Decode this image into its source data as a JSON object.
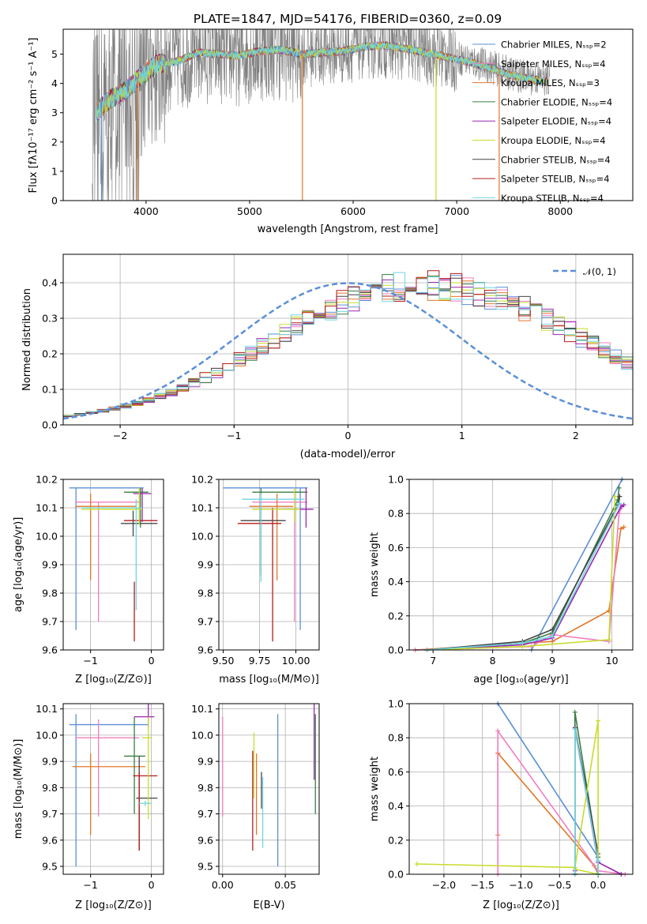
{
  "colors": {
    "spectrum_data": "#7f7f7f",
    "normal_curve": "#5b8fd6",
    "grid": "#b0b0b0"
  },
  "chart_data": [
    {
      "id": "spectrum",
      "type": "line",
      "title": "PLATE=1847, MJD=54176, FIBERID=0360, z=0.09",
      "xlabel": "wavelength [Angstrom, rest frame]",
      "ylabel": "Flux [fλ10⁻¹⁷ erg cm⁻² s⁻¹ A⁻¹]",
      "xlim": [
        3200,
        8700
      ],
      "ylim": [
        0,
        5.85
      ],
      "xticks": [
        "4000",
        "5000",
        "6000",
        "7000",
        "8000"
      ],
      "yticks": [
        "0",
        "1",
        "2",
        "3",
        "4",
        "5"
      ],
      "legend_position": "upper right",
      "series": [
        {
          "name": "Chabrier MILES, Nₛₛₚ=2",
          "color": "#5b8fd6"
        },
        {
          "name": "Salpeter MILES, Nₛₛₚ=4",
          "color": "#ef7fc2"
        },
        {
          "name": "Kroupa MILES, Nₛₛₚ=3",
          "color": "#e0782a"
        },
        {
          "name": "Chabrier ELODIE, Nₛₛₚ=4",
          "color": "#3a7d44"
        },
        {
          "name": "Salpeter ELODIE, Nₛₛₚ=4",
          "color": "#9c27b0"
        },
        {
          "name": "Kroupa ELODIE, Nₛₛₚ=4",
          "color": "#c8dc2a"
        },
        {
          "name": "Chabrier STELIB, Nₛₛₚ=4",
          "color": "#444444"
        },
        {
          "name": "Salpeter STELIB, Nₛₛₚ=4",
          "color": "#b71c1c"
        },
        {
          "name": "Kroupa STELIB, Nₛₛₚ=4",
          "color": "#6fd6e0"
        }
      ],
      "continuum": {
        "x": [
          3500,
          3650,
          3800,
          3950,
          4100,
          4300,
          4500,
          4700,
          4900,
          5100,
          5300,
          5500,
          5700,
          5900,
          6100,
          6300,
          6500,
          6700,
          6900,
          7100,
          7300,
          7500,
          7700,
          7900
        ],
        "y": [
          3.0,
          3.5,
          3.8,
          4.3,
          4.7,
          4.8,
          5.1,
          5.05,
          5.0,
          5.15,
          5.2,
          5.05,
          5.1,
          5.15,
          5.3,
          5.35,
          5.25,
          5.1,
          4.95,
          4.8,
          4.6,
          4.35,
          4.2,
          4.1
        ]
      }
    },
    {
      "id": "residuals",
      "type": "histogram",
      "xlabel": "(data-model)/error",
      "ylabel": "Normed distribution",
      "xlim": [
        -2.5,
        2.5
      ],
      "ylim": [
        0,
        0.48
      ],
      "xticks": [
        "−2",
        "−1",
        "0",
        "1",
        "2"
      ],
      "yticks": [
        "0.0",
        "0.1",
        "0.2",
        "0.3",
        "0.4"
      ],
      "legend_label": "𝒩(0, 1)",
      "legend_position": "upper right",
      "bin_width": 0.1,
      "base_shape": [
        0.022,
        0.025,
        0.03,
        0.035,
        0.04,
        0.046,
        0.053,
        0.061,
        0.07,
        0.08,
        0.091,
        0.104,
        0.118,
        0.133,
        0.149,
        0.166,
        0.184,
        0.203,
        0.222,
        0.241,
        0.26,
        0.279,
        0.297,
        0.314,
        0.33,
        0.345,
        0.358,
        0.369,
        0.378,
        0.385,
        0.39,
        0.393,
        0.394,
        0.393,
        0.39,
        0.386,
        0.38,
        0.372,
        0.362,
        0.351,
        0.339,
        0.326,
        0.311,
        0.296,
        0.28,
        0.263,
        0.245,
        0.227,
        0.209,
        0.191,
        0.173,
        0.156,
        0.139,
        0.124,
        0.109,
        0.096,
        0.084,
        0.073,
        0.064,
        0.055,
        0.048,
        0.042,
        0.036,
        0.031,
        0.027,
        0.023,
        0.02,
        0.017,
        0.015,
        0.013,
        0.011,
        0.01
      ]
    },
    {
      "id": "age-vs-Z",
      "type": "errorbar",
      "xlabel": "Z [log₁₀(Z/Z⊙)]",
      "ylabel": "age  [log₁₀(age/yr)]",
      "xlim": [
        -1.45,
        0.2
      ],
      "ylim": [
        9.6,
        10.2
      ],
      "xticks": [
        "−1",
        "0"
      ],
      "yticks": [
        "9.6",
        "9.7",
        "9.8",
        "9.9",
        "10.0",
        "10.1",
        "10.2"
      ],
      "points": [
        {
          "c": "#5b8fd6",
          "x": -1.24,
          "xe": 0,
          "xl": -1.35,
          "xh": -0.13,
          "y": 10.17,
          "yl": 9.67,
          "yh": 10.17
        },
        {
          "c": "#ef7fc2",
          "x": -0.87,
          "xl": -1.25,
          "xh": -0.2,
          "y": 10.12,
          "yl": 9.7,
          "yh": 10.12
        },
        {
          "c": "#e0782a",
          "x": -1.0,
          "xl": -1.25,
          "xh": -0.25,
          "y": 10.105,
          "yl": 9.845,
          "yh": 10.15
        },
        {
          "c": "#3a7d44",
          "x": -0.18,
          "xl": -0.45,
          "xh": -0.05,
          "y": 10.155,
          "yl": 10.03,
          "yh": 10.17
        },
        {
          "c": "#444444",
          "x": -0.3,
          "xl": -0.5,
          "xh": 0.1,
          "y": 10.045,
          "yl": 10.0,
          "yh": 10.09
        },
        {
          "c": "#b71c1c",
          "x": -0.28,
          "xl": -0.45,
          "xh": 0.1,
          "y": 10.055,
          "yl": 9.63,
          "yh": 9.84
        },
        {
          "c": "#9c27b0",
          "x": -0.15,
          "xl": -0.3,
          "xh": 0.0,
          "y": 10.15,
          "yl": 10.05,
          "yh": 10.17
        },
        {
          "c": "#c8dc2a",
          "x": -0.2,
          "xl": -1.15,
          "xh": -0.15,
          "y": 10.095,
          "yl": 10.04,
          "yh": 10.17
        },
        {
          "c": "#6fd6e0",
          "x": -0.25,
          "xl": -1.15,
          "xh": -0.15,
          "y": 10.1,
          "yl": 9.74,
          "yh": 10.13
        }
      ]
    },
    {
      "id": "age-vs-mass",
      "type": "errorbar",
      "xlabel": "mass [log₁₀(M/M⊙)]",
      "xlim": [
        9.47,
        10.16
      ],
      "ylim": [
        9.6,
        10.2
      ],
      "xticks": [
        "9.50",
        "9.75",
        "10.00"
      ],
      "yticks": [
        "9.6",
        "9.7",
        "9.8",
        "9.9",
        "10.0",
        "10.1",
        "10.2"
      ],
      "points": [
        {
          "c": "#5b8fd6",
          "x": 10.03,
          "xl": 9.5,
          "xh": 10.08,
          "y": 10.17,
          "yl": 9.67,
          "yh": 10.17
        },
        {
          "c": "#ef7fc2",
          "x": 9.99,
          "xl": 9.7,
          "xh": 10.08,
          "y": 10.12,
          "yl": 9.7,
          "yh": 10.12
        },
        {
          "c": "#e0782a",
          "x": 9.87,
          "xl": 9.68,
          "xh": 9.98,
          "y": 10.105,
          "yl": 9.845,
          "yh": 10.15
        },
        {
          "c": "#3a7d44",
          "x": 9.76,
          "xl": 9.7,
          "xh": 10.08,
          "y": 10.155,
          "yl": 9.87,
          "yh": 10.17
        },
        {
          "c": "#444444",
          "x": 9.76,
          "xl": 9.62,
          "xh": 9.93,
          "y": 10.055,
          "yl": 9.86,
          "yh": 10.1
        },
        {
          "c": "#b71c1c",
          "x": 9.84,
          "xl": 9.6,
          "xh": 9.9,
          "y": 10.045,
          "yl": 9.63,
          "yh": 10.1
        },
        {
          "c": "#9c27b0",
          "x": 10.07,
          "xl": 9.9,
          "xh": 10.12,
          "y": 10.095,
          "yl": 10.03,
          "yh": 10.17
        },
        {
          "c": "#c8dc2a",
          "x": 9.99,
          "xl": 9.7,
          "xh": 10.03,
          "y": 10.095,
          "yl": 10.05,
          "yh": 10.17
        },
        {
          "c": "#6fd6e0",
          "x": 9.76,
          "xl": 9.63,
          "xh": 10.06,
          "y": 10.13,
          "yl": 9.84,
          "yh": 10.15
        }
      ]
    },
    {
      "id": "massweight-vs-age",
      "type": "line",
      "xlabel": "age  [log₁₀(age/yr)]",
      "ylabel": "mass weight",
      "xlim": [
        6.6,
        10.35
      ],
      "ylim": [
        0,
        1
      ],
      "xticks": [
        "7",
        "8",
        "9",
        "10"
      ],
      "yticks": [
        "0.0",
        "0.2",
        "0.4",
        "0.6",
        "0.8",
        "1.0"
      ],
      "series": [
        {
          "c": "#5b8fd6",
          "x": [
            8.65,
            10.17
          ],
          "y": [
            0.0,
            1.0
          ]
        },
        {
          "c": "#e0782a",
          "x": [
            6.7,
            9.0,
            9.95,
            10.15,
            10.2
          ],
          "y": [
            0.0,
            0.05,
            0.23,
            0.71,
            0.72
          ]
        },
        {
          "c": "#ef7fc2",
          "x": [
            6.7,
            8.65,
            9.0,
            9.95,
            10.12,
            10.17
          ],
          "y": [
            0.0,
            0.02,
            0.09,
            0.05,
            0.8,
            0.84
          ]
        },
        {
          "c": "#3a7d44",
          "x": [
            6.9,
            8.5,
            9.0,
            10.1,
            10.12
          ],
          "y": [
            0.0,
            0.04,
            0.1,
            0.88,
            0.95
          ]
        },
        {
          "c": "#444444",
          "x": [
            6.9,
            8.5,
            9.0,
            10.1,
            10.13
          ],
          "y": [
            0.0,
            0.05,
            0.12,
            0.85,
            0.9
          ]
        },
        {
          "c": "#9c27b0",
          "x": [
            6.9,
            8.5,
            9.0,
            10.15,
            10.2
          ],
          "y": [
            0.0,
            0.03,
            0.07,
            0.84,
            0.85
          ]
        },
        {
          "c": "#c8dc2a",
          "x": [
            6.9,
            8.5,
            9.95,
            10.05
          ],
          "y": [
            0.0,
            0.02,
            0.06,
            0.9
          ]
        },
        {
          "c": "#6fd6e0",
          "x": [
            6.9,
            8.5,
            9.0,
            10.1,
            10.13
          ],
          "y": [
            0.0,
            0.04,
            0.08,
            0.84,
            0.86
          ]
        }
      ]
    },
    {
      "id": "mass-vs-Z",
      "type": "errorbar",
      "xlabel": "Z [log₁₀(Z/Z⊙)]",
      "ylabel": "mass [log₁₀(M/M⊙)]",
      "xlim": [
        -1.45,
        0.2
      ],
      "ylim": [
        9.47,
        10.12
      ],
      "xticks": [
        "−1",
        "0"
      ],
      "yticks": [
        "9.5",
        "9.6",
        "9.7",
        "9.8",
        "9.9",
        "10.0",
        "10.1"
      ],
      "points": [
        {
          "c": "#5b8fd6",
          "x": -1.24,
          "xl": -1.35,
          "xh": -0.05,
          "y": 10.04,
          "yl": 9.5,
          "yh": 10.08
        },
        {
          "c": "#ef7fc2",
          "x": -0.87,
          "xl": -1.25,
          "xh": -0.2,
          "y": 9.99,
          "yl": 9.69,
          "yh": 10.06
        },
        {
          "c": "#e0782a",
          "x": -1.0,
          "xl": -1.3,
          "xh": -0.1,
          "y": 9.88,
          "yl": 9.62,
          "yh": 9.93
        },
        {
          "c": "#3a7d44",
          "x": -0.28,
          "xl": -0.45,
          "xh": -0.1,
          "y": 9.92,
          "yl": 9.7,
          "yh": 10.07
        },
        {
          "c": "#444444",
          "x": -0.2,
          "xl": -0.25,
          "xh": 0.1,
          "y": 9.76,
          "yl": 9.56,
          "yh": 9.92
        },
        {
          "c": "#b71c1c",
          "x": -0.2,
          "xl": -0.3,
          "xh": 0.1,
          "y": 9.845,
          "yl": 9.56,
          "yh": 9.86
        },
        {
          "c": "#9c27b0",
          "x": -0.05,
          "xl": -0.28,
          "xh": 0.05,
          "y": 10.07,
          "yl": 10.03,
          "yh": 10.12
        },
        {
          "c": "#c8dc2a",
          "x": -0.05,
          "xl": -0.15,
          "xh": 0.0,
          "y": 9.99,
          "yl": 9.68,
          "yh": 10.07
        },
        {
          "c": "#6fd6e0",
          "x": -0.1,
          "xl": -0.2,
          "xh": 0.0,
          "y": 9.74,
          "yl": 9.73,
          "yh": 9.75
        }
      ]
    },
    {
      "id": "mass-vs-ebv",
      "type": "errorbar",
      "xlabel": "E(B-V)",
      "xlim": [
        -0.003,
        0.077
      ],
      "ylim": [
        9.47,
        10.12
      ],
      "xticks": [
        "0.00",
        "0.05"
      ],
      "yticks": [
        "9.5",
        "9.6",
        "9.7",
        "9.8",
        "9.9",
        "10.0",
        "10.1"
      ],
      "points": [
        {
          "c": "#ef7fc2",
          "x": 0.0,
          "y": 9.99,
          "yl": 9.69,
          "yh": 10.07
        },
        {
          "c": "#b71c1c",
          "x": 0.024,
          "y": 9.845,
          "yl": 9.56,
          "yh": 9.94
        },
        {
          "c": "#c8dc2a",
          "x": 0.025,
          "y": 9.9,
          "yl": 9.76,
          "yh": 10.01
        },
        {
          "c": "#e0782a",
          "x": 0.027,
          "y": 9.88,
          "yl": 9.62,
          "yh": 9.93
        },
        {
          "c": "#444444",
          "x": 0.031,
          "y": 9.8,
          "yl": 9.72,
          "yh": 9.86
        },
        {
          "c": "#6fd6e0",
          "x": 0.032,
          "y": 9.74,
          "yl": 9.57,
          "yh": 9.84
        },
        {
          "c": "#5b8fd6",
          "x": 0.044,
          "y": 9.8,
          "yl": 9.5,
          "yh": 10.08
        },
        {
          "c": "#9c27b0",
          "x": 0.073,
          "y": 10.07,
          "yl": 9.83,
          "yh": 10.12
        },
        {
          "c": "#3a7d44",
          "x": 0.074,
          "y": 9.92,
          "yl": 9.7,
          "yh": 10.08
        }
      ]
    },
    {
      "id": "massweight-vs-Z",
      "type": "line",
      "xlabel": "Z [log₁₀(Z/Z⊙)]",
      "ylabel": "mass weight",
      "xlim": [
        -2.45,
        0.45
      ],
      "ylim": [
        0,
        1
      ],
      "xticks": [
        "−2.0",
        "−1.5",
        "−1.0",
        "−0.5",
        "0.0"
      ],
      "yticks": [
        "0.0",
        "0.2",
        "0.4",
        "0.6",
        "0.8",
        "1.0"
      ],
      "series": [
        {
          "c": "#5b8fd6",
          "x": [
            -1.3,
            0.0,
            0.0
          ],
          "y": [
            1.0,
            0.1,
            0.0
          ]
        },
        {
          "c": "#e0782a",
          "x": [
            -1.3,
            -1.3,
            -1.3,
            -0.05,
            0.0
          ],
          "y": [
            0.23,
            0.71,
            0.71,
            0.05,
            0.0
          ]
        },
        {
          "c": "#ef7fc2",
          "x": [
            -1.3,
            -1.3,
            0.0,
            0.35
          ],
          "y": [
            0.0,
            0.84,
            0.02,
            0.0
          ]
        },
        {
          "c": "#3a7d44",
          "x": [
            -0.3,
            -0.3,
            0.0,
            0.0
          ],
          "y": [
            0.0,
            0.95,
            0.1,
            0.0
          ]
        },
        {
          "c": "#444444",
          "x": [
            -0.3,
            -0.3,
            0.0,
            0.0
          ],
          "y": [
            0.0,
            0.86,
            0.12,
            0.0
          ]
        },
        {
          "c": "#9c27b0",
          "x": [
            -0.3,
            -0.3,
            0.0,
            0.3
          ],
          "y": [
            0.02,
            0.85,
            0.07,
            0.0
          ]
        },
        {
          "c": "#c8dc2a",
          "x": [
            -2.35,
            -0.3,
            0.0,
            0.0,
            -0.3
          ],
          "y": [
            0.06,
            0.04,
            0.9,
            0.0,
            0.03
          ]
        },
        {
          "c": "#6fd6e0",
          "x": [
            -0.3,
            -0.3,
            0.0,
            0.0
          ],
          "y": [
            0.0,
            0.85,
            0.08,
            0.0
          ]
        }
      ]
    }
  ]
}
